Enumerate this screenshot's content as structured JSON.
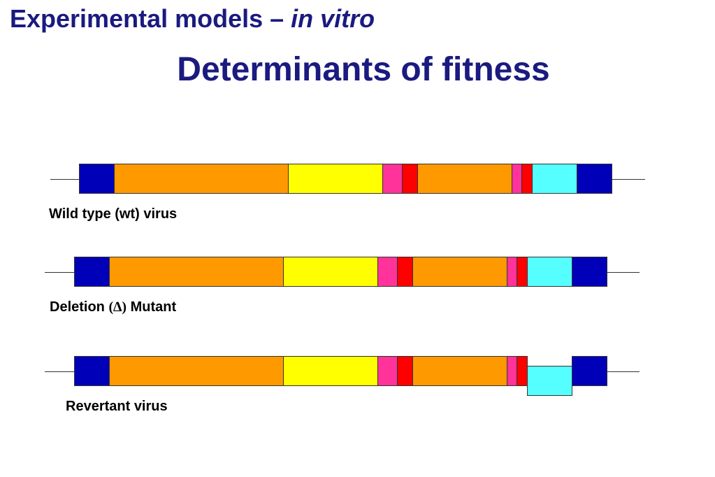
{
  "heading": {
    "text": "Experimental models – ",
    "italic": "in vitro"
  },
  "title": "Determinants of fitness",
  "colors": {
    "dark_blue": "#0000b8",
    "orange": "#ff9900",
    "yellow": "#ffff00",
    "pink": "#ff3399",
    "red": "#ff0000",
    "cyan": "#55ffff"
  },
  "constructs": [
    {
      "name": "wild-type",
      "label": "Wild type (wt) virus",
      "segments": [
        "dark_blue",
        "orange",
        "yellow",
        "pink",
        "red",
        "orange",
        "pink",
        "red",
        "cyan",
        "dark_blue"
      ]
    },
    {
      "name": "deletion-mutant",
      "label_before": "Deletion ",
      "label_symbol": "(∆)",
      "label_after": " Mutant",
      "segments": [
        "dark_blue",
        "orange",
        "yellow",
        "pink",
        "red",
        "orange",
        "pink",
        "red",
        "cyan",
        "dark_blue"
      ]
    },
    {
      "name": "revertant",
      "label": "Revertant virus",
      "segments": [
        "dark_blue",
        "orange",
        "yellow",
        "pink",
        "red",
        "orange",
        "pink",
        "red",
        "cyan",
        "dark_blue"
      ],
      "displaced_segment": "cyan"
    }
  ]
}
